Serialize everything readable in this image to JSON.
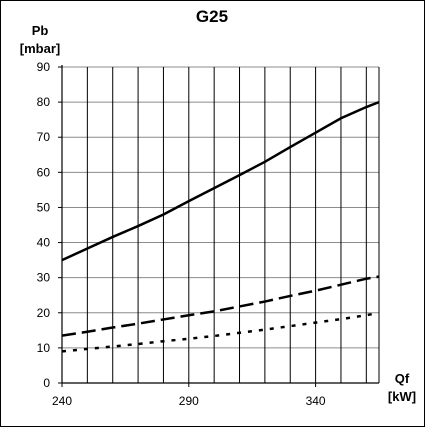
{
  "chart_data": {
    "type": "line",
    "title": "G25",
    "ylabel_line1": "Pb",
    "ylabel_line2": "[mbar]",
    "xlabel_line1": "Qf",
    "xlabel_line2": "[kW]",
    "xlim": [
      240,
      365
    ],
    "ylim": [
      0,
      90
    ],
    "grid": true,
    "grid_x_step": 10,
    "grid_y_step": 10,
    "x_ticks": [
      240,
      290,
      340
    ],
    "y_ticks": [
      0,
      10,
      20,
      30,
      40,
      50,
      60,
      70,
      80,
      90
    ],
    "series": [
      {
        "style": "solid",
        "color": "#000000",
        "x": [
          240,
          250,
          260,
          270,
          280,
          290,
          300,
          310,
          320,
          330,
          340,
          350,
          360,
          365
        ],
        "y": [
          35,
          38.3,
          41.6,
          44.7,
          48,
          51.8,
          55.5,
          59.2,
          63,
          67.2,
          71.3,
          75.4,
          78.6,
          80
        ]
      },
      {
        "style": "dashed",
        "color": "#000000",
        "x": [
          240,
          250,
          260,
          270,
          280,
          290,
          300,
          310,
          320,
          330,
          340,
          350,
          360,
          365
        ],
        "y": [
          13.5,
          14.6,
          15.8,
          16.9,
          18.1,
          19.3,
          20.4,
          21.8,
          23.2,
          24.8,
          26.3,
          28,
          29.7,
          30.3
        ]
      },
      {
        "style": "dotted",
        "color": "#000000",
        "x": [
          240,
          250,
          260,
          270,
          280,
          290,
          300,
          310,
          320,
          330,
          340,
          350,
          360,
          365
        ],
        "y": [
          9,
          9.7,
          10.4,
          11.1,
          11.9,
          12.6,
          13.4,
          14.3,
          15.2,
          16.2,
          17.2,
          18.2,
          19.3,
          20
        ]
      }
    ]
  }
}
